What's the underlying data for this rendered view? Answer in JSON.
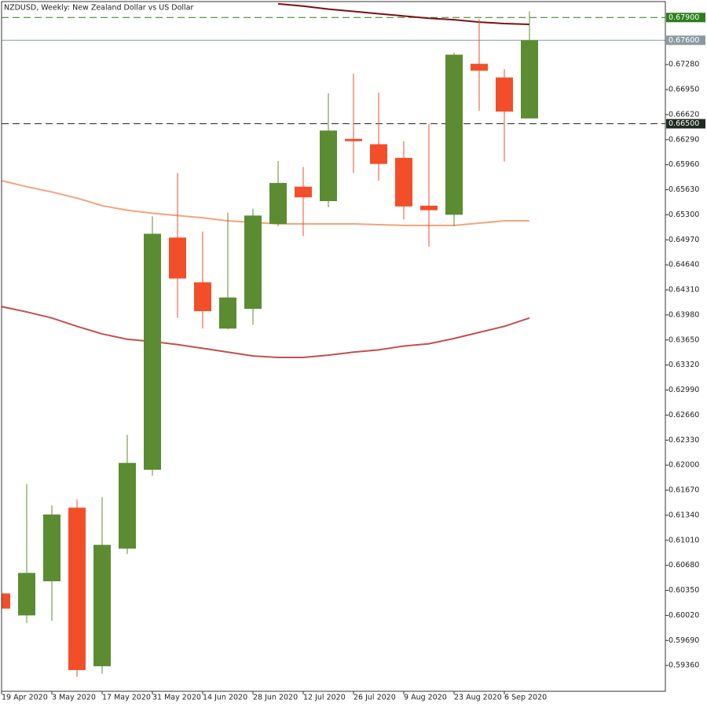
{
  "chart_data": {
    "type": "candlestick",
    "title": "NZDUSD, Weekly:  New Zealand Dollar vs US Dollar",
    "categories": [
      "19 Apr 2020",
      null,
      "3 May 2020",
      null,
      "17 May 2020",
      null,
      "31 May 2020",
      null,
      "14 Jun 2020",
      null,
      "28 Jun 2020",
      null,
      "12 Jul 2020",
      null,
      "26 Jul 2020",
      null,
      "9 Aug 2020",
      null,
      "23 Aug 2020",
      null,
      "6 Sep 2020",
      null
    ],
    "open": [
      0.6031,
      0.6002,
      0.6047,
      0.6144,
      0.5935,
      0.609,
      0.6194,
      0.65,
      0.6441,
      0.638,
      0.6406,
      0.6518,
      0.6567,
      0.6548,
      0.663,
      0.6623,
      0.6605,
      0.6542,
      0.653,
      0.6729,
      0.6711,
      0.6657
    ],
    "high": [
      0.6034,
      0.6175,
      0.6147,
      0.6155,
      0.6158,
      0.624,
      0.6528,
      0.6585,
      0.6508,
      0.6533,
      0.6538,
      0.6601,
      0.6593,
      0.669,
      0.6716,
      0.6691,
      0.6627,
      0.665,
      0.6744,
      0.6788,
      0.6722,
      0.6798
    ],
    "low": [
      0.6008,
      0.5992,
      0.5995,
      0.5921,
      0.5925,
      0.6083,
      0.6186,
      0.6394,
      0.638,
      0.6379,
      0.6385,
      0.6515,
      0.6502,
      0.654,
      0.6585,
      0.6575,
      0.6524,
      0.6488,
      0.6515,
      0.6667,
      0.66,
      0.6657
    ],
    "close": [
      0.6011,
      0.6058,
      0.6135,
      0.593,
      0.6095,
      0.6203,
      0.6505,
      0.6446,
      0.6403,
      0.6421,
      0.6529,
      0.6572,
      0.6553,
      0.6641,
      0.6627,
      0.6597,
      0.6541,
      0.6536,
      0.6741,
      0.672,
      0.6666,
      0.676
    ],
    "up_color": "#5b8c32",
    "down_color": "#f24e2a",
    "moving_averages": [
      {
        "color": "#7b1010",
        "values": [
          null,
          null,
          null,
          null,
          null,
          null,
          null,
          null,
          null,
          null,
          null,
          0.6808,
          0.6805,
          0.6801,
          0.6798,
          0.6795,
          0.6792,
          0.6789,
          0.6787,
          0.6784,
          0.6782,
          0.6781
        ]
      },
      {
        "color": "#f5a27c",
        "values": [
          0.6575,
          0.6567,
          0.656,
          0.6552,
          0.6542,
          0.6536,
          0.6532,
          0.6529,
          0.6526,
          0.6522,
          0.652,
          0.6518,
          0.6518,
          0.6518,
          0.6518,
          0.6517,
          0.6516,
          0.6516,
          0.6516,
          0.6519,
          0.6522,
          0.6522
        ]
      },
      {
        "color": "#c4504a",
        "values": [
          0.6409,
          0.6402,
          0.6394,
          0.6383,
          0.6373,
          0.6366,
          0.6363,
          0.6359,
          0.6354,
          0.6349,
          0.6344,
          0.6342,
          0.6342,
          0.6345,
          0.6349,
          0.6352,
          0.6357,
          0.636,
          0.6367,
          0.6375,
          0.6383,
          0.6394
        ]
      }
    ],
    "levels": [
      {
        "value": 0.679,
        "label": "0.67900",
        "color": "#2e7d1e",
        "dashed": true
      },
      {
        "value": 0.676,
        "label": "0.67600",
        "color": "#8c9aa0",
        "dashed": false
      },
      {
        "value": 0.665,
        "label": "0.66500",
        "color": "#1e2a22",
        "dashed": true
      }
    ],
    "ylim": [
      0.5902,
      0.6811
    ],
    "yticks": [
      {
        "value": 0.5936,
        "label": "0.59360"
      },
      {
        "value": 0.5969,
        "label": "0.59690"
      },
      {
        "value": 0.6002,
        "label": "0.60020"
      },
      {
        "value": 0.6035,
        "label": "0.60350"
      },
      {
        "value": 0.6068,
        "label": "0.60680"
      },
      {
        "value": 0.6101,
        "label": "0.61010"
      },
      {
        "value": 0.6134,
        "label": "0.61340"
      },
      {
        "value": 0.6167,
        "label": "0.61670"
      },
      {
        "value": 0.62,
        "label": "0.62000"
      },
      {
        "value": 0.6233,
        "label": "0.62330"
      },
      {
        "value": 0.6266,
        "label": "0.62660"
      },
      {
        "value": 0.6299,
        "label": "0.62990"
      },
      {
        "value": 0.6332,
        "label": "0.63320"
      },
      {
        "value": 0.6365,
        "label": "0.63650"
      },
      {
        "value": 0.6398,
        "label": "0.63980"
      },
      {
        "value": 0.6431,
        "label": "0.64310"
      },
      {
        "value": 0.6464,
        "label": "0.64640"
      },
      {
        "value": 0.6497,
        "label": "0.64970"
      },
      {
        "value": 0.653,
        "label": "0.65300"
      },
      {
        "value": 0.6563,
        "label": "0.65630"
      },
      {
        "value": 0.6596,
        "label": "0.65960"
      },
      {
        "value": 0.6629,
        "label": "0.66290"
      },
      {
        "value": 0.6662,
        "label": "0.66620"
      },
      {
        "value": 0.6695,
        "label": "0.66950"
      },
      {
        "value": 0.6728,
        "label": "0.67280"
      }
    ]
  }
}
